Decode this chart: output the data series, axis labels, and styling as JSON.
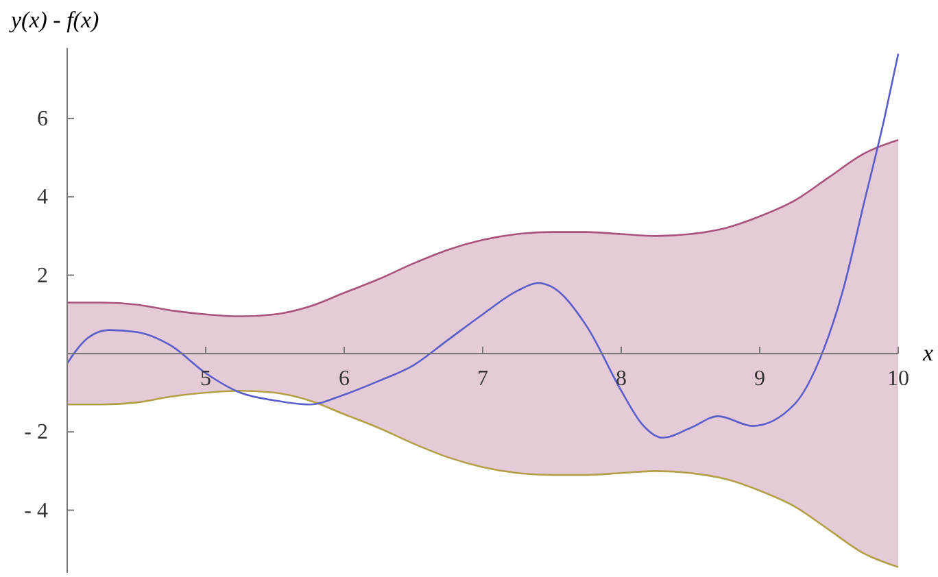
{
  "chart_data": {
    "type": "line",
    "xlabel": "x",
    "ylabel": "y(x) - f(x)",
    "xlim": [
      4,
      10
    ],
    "ylim": [
      -5.6,
      7.8
    ],
    "xticks": [
      5,
      6,
      7,
      8,
      9,
      10
    ],
    "yticks": [
      {
        "value": -4,
        "label": "- 4"
      },
      {
        "value": -2,
        "label": "- 2"
      },
      2,
      4,
      6
    ],
    "grid": false,
    "marker": "none",
    "line_style": "solid",
    "x": [
      4,
      4.25,
      4.5,
      4.75,
      5,
      5.25,
      5.5,
      5.75,
      6,
      6.25,
      6.5,
      6.75,
      7,
      7.25,
      7.5,
      7.75,
      8,
      8.25,
      8.5,
      8.75,
      9,
      9.25,
      9.5,
      9.75,
      10
    ],
    "series": [
      {
        "type": "line",
        "color": "#a8527c",
        "values": [
          1.3,
          1.3,
          1.25,
          1.1,
          1.0,
          0.95,
          1.0,
          1.2,
          1.55,
          1.9,
          2.3,
          2.65,
          2.9,
          3.05,
          3.1,
          3.1,
          3.05,
          3.0,
          3.05,
          3.2,
          3.5,
          3.9,
          4.5,
          5.1,
          5.45
        ],
        "upper": [
          1.3,
          1.3,
          1.25,
          1.1,
          1.0,
          0.95,
          1.0,
          1.2,
          1.55,
          1.9,
          2.3,
          2.65,
          2.9,
          3.05,
          3.1,
          3.1,
          3.05,
          3.0,
          3.05,
          3.2,
          3.5,
          3.9,
          4.5,
          5.1,
          5.45
        ],
        "lower": [
          -1.3,
          -1.3,
          -1.25,
          -1.1,
          -1.0,
          -0.95,
          -1.0,
          -1.2,
          -1.55,
          -1.9,
          -2.3,
          -2.65,
          -2.9,
          -3.05,
          -3.1,
          -3.1,
          -3.05,
          -3.0,
          -3.05,
          -3.2,
          -3.5,
          -3.9,
          -4.5,
          -5.1,
          -5.45
        ]
      },
      {
        "type": "line",
        "color": "#b3a047",
        "values": [
          -1.3,
          -1.3,
          -1.25,
          -1.1,
          -1.0,
          -0.95,
          -1.0,
          -1.2,
          -1.55,
          -1.9,
          -2.3,
          -2.65,
          -2.9,
          -3.05,
          -3.1,
          -3.1,
          -3.05,
          -3.0,
          -3.05,
          -3.2,
          -3.5,
          -3.9,
          -4.5,
          -5.1,
          -5.45
        ]
      },
      {
        "type": "line",
        "color": "#5a5ec8",
        "x": [
          4,
          4.15,
          4.3,
          4.5,
          4.75,
          5,
          5.25,
          5.5,
          5.75,
          6,
          6.25,
          6.5,
          6.75,
          7,
          7.25,
          7.4,
          7.5,
          7.75,
          8,
          8.15,
          8.3,
          8.5,
          8.7,
          8.95,
          9.25,
          9.45,
          9.6,
          9.75,
          9.9,
          10
        ],
        "values": [
          -0.25,
          0.4,
          0.6,
          0.55,
          0.2,
          -0.5,
          -1.0,
          -1.2,
          -1.3,
          -1.05,
          -0.7,
          -0.3,
          0.35,
          1.0,
          1.6,
          1.8,
          1.7,
          0.7,
          -0.95,
          -1.8,
          -2.15,
          -1.9,
          -1.6,
          -1.85,
          -1.3,
          0.0,
          1.6,
          3.8,
          6.0,
          7.65
        ]
      }
    ]
  }
}
